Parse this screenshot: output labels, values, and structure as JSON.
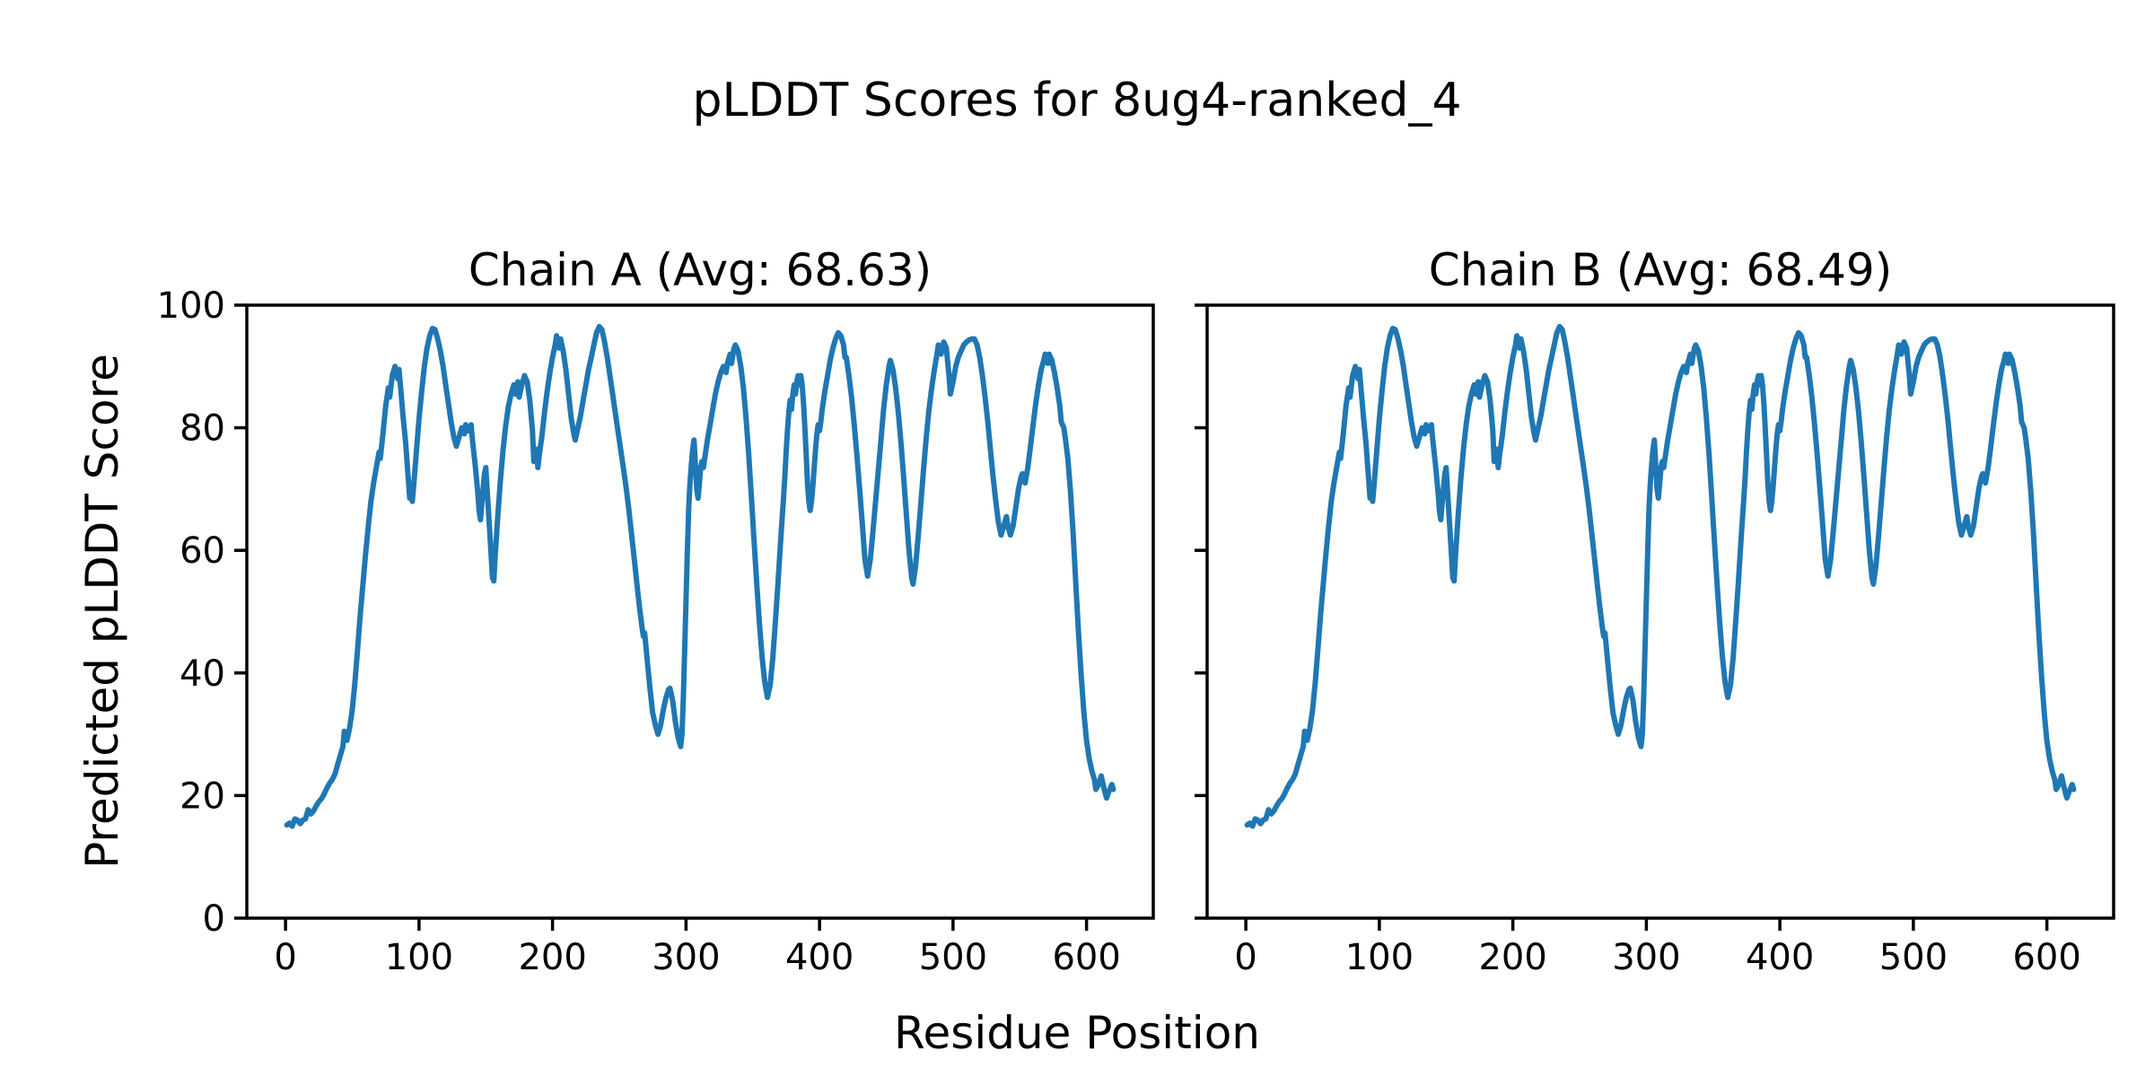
{
  "figure": {
    "title": "pLDDT Scores for 8ug4-ranked_4"
  },
  "chart_data": {
    "type": "line",
    "title": "pLDDT Scores for 8ug4-ranked_4",
    "xlabel": "Residue Position",
    "ylabel": "Predicted pLDDT Score",
    "xlim": [
      -29,
      650
    ],
    "ylim": [
      0,
      100
    ],
    "xticks": [
      0,
      100,
      200,
      300,
      400,
      500,
      600
    ],
    "yticks": [
      0,
      20,
      40,
      60,
      80,
      100
    ],
    "grid": false,
    "legend": false,
    "line_color": "#1f77b4",
    "axis_color": "#000000",
    "background": "#ffffff",
    "subplots": [
      {
        "name": "Chain A",
        "title": "Chain A (Avg: 68.63)",
        "avg": 68.63
      },
      {
        "name": "Chain B",
        "title": "Chain B (Avg: 68.49)",
        "avg": 68.49
      }
    ],
    "points": [
      [
        1,
        15.2
      ],
      [
        3,
        15.5
      ],
      [
        5,
        15.0
      ],
      [
        7,
        16.2
      ],
      [
        9,
        16.0
      ],
      [
        11,
        15.4
      ],
      [
        13,
        16.0
      ],
      [
        15,
        16.2
      ],
      [
        17,
        17.7
      ],
      [
        19,
        17.0
      ],
      [
        21,
        17.5
      ],
      [
        23,
        18.3
      ],
      [
        25,
        19.0
      ],
      [
        27,
        19.5
      ],
      [
        29,
        20.3
      ],
      [
        31,
        21.2
      ],
      [
        33,
        22.0
      ],
      [
        35,
        22.6
      ],
      [
        37,
        23.5
      ],
      [
        39,
        25.0
      ],
      [
        41,
        26.5
      ],
      [
        43,
        28.0
      ],
      [
        44,
        30.5
      ],
      [
        46,
        29.0
      ],
      [
        48,
        31.0
      ],
      [
        50,
        34.0
      ],
      [
        52,
        38.5
      ],
      [
        54,
        44.0
      ],
      [
        56,
        49.5
      ],
      [
        58,
        54.5
      ],
      [
        60,
        59.5
      ],
      [
        62,
        64.0
      ],
      [
        64,
        68.0
      ],
      [
        66,
        71.0
      ],
      [
        68,
        73.5
      ],
      [
        70,
        76.0
      ],
      [
        71,
        75.0
      ],
      [
        73,
        79.0
      ],
      [
        75,
        83.5
      ],
      [
        77,
        86.5
      ],
      [
        78,
        85.0
      ],
      [
        80,
        88.5
      ],
      [
        82,
        90.0
      ],
      [
        84,
        88.0
      ],
      [
        85,
        89.5
      ],
      [
        86,
        87.0
      ],
      [
        88,
        82.0
      ],
      [
        90,
        77.5
      ],
      [
        92,
        71.5
      ],
      [
        93,
        68.5
      ],
      [
        94,
        69.5
      ],
      [
        95,
        68.0
      ],
      [
        96,
        70.5
      ],
      [
        98,
        76.0
      ],
      [
        100,
        81.5
      ],
      [
        102,
        86.0
      ],
      [
        104,
        90.0
      ],
      [
        106,
        93.0
      ],
      [
        108,
        95.0
      ],
      [
        110,
        96.2
      ],
      [
        112,
        96.0
      ],
      [
        114,
        94.5
      ],
      [
        116,
        92.5
      ],
      [
        118,
        90.0
      ],
      [
        120,
        87.0
      ],
      [
        122,
        84.0
      ],
      [
        124,
        81.0
      ],
      [
        126,
        78.5
      ],
      [
        128,
        77.0
      ],
      [
        130,
        78.5
      ],
      [
        132,
        80.0
      ],
      [
        134,
        79.0
      ],
      [
        135,
        80.5
      ],
      [
        137,
        79.5
      ],
      [
        139,
        80.5
      ],
      [
        140,
        78.0
      ],
      [
        142,
        74.0
      ],
      [
        144,
        69.5
      ],
      [
        145,
        66.5
      ],
      [
        146,
        65.0
      ],
      [
        147,
        67.5
      ],
      [
        149,
        72.5
      ],
      [
        150,
        73.5
      ],
      [
        151,
        70.0
      ],
      [
        153,
        63.0
      ],
      [
        155,
        55.5
      ],
      [
        156,
        55.0
      ],
      [
        157,
        59.0
      ],
      [
        159,
        65.5
      ],
      [
        161,
        71.5
      ],
      [
        163,
        76.5
      ],
      [
        165,
        80.5
      ],
      [
        167,
        83.5
      ],
      [
        169,
        85.5
      ],
      [
        171,
        87.0
      ],
      [
        172,
        85.5
      ],
      [
        174,
        87.5
      ],
      [
        175,
        85.0
      ],
      [
        177,
        87.0
      ],
      [
        179,
        88.5
      ],
      [
        181,
        87.5
      ],
      [
        183,
        84.5
      ],
      [
        185,
        79.5
      ],
      [
        186,
        74.5
      ],
      [
        188,
        76.5
      ],
      [
        189,
        73.5
      ],
      [
        190,
        75.5
      ],
      [
        192,
        78.5
      ],
      [
        194,
        82.5
      ],
      [
        196,
        86.0
      ],
      [
        198,
        89.0
      ],
      [
        200,
        91.5
      ],
      [
        202,
        93.5
      ],
      [
        203,
        95.0
      ],
      [
        205,
        93.0
      ],
      [
        206,
        94.5
      ],
      [
        208,
        92.5
      ],
      [
        210,
        89.5
      ],
      [
        212,
        85.5
      ],
      [
        214,
        81.5
      ],
      [
        216,
        79.0
      ],
      [
        217,
        78.0
      ],
      [
        219,
        80.0
      ],
      [
        221,
        82.0
      ],
      [
        223,
        84.5
      ],
      [
        225,
        87.0
      ],
      [
        227,
        89.5
      ],
      [
        229,
        91.5
      ],
      [
        231,
        93.5
      ],
      [
        233,
        95.5
      ],
      [
        235,
        96.5
      ],
      [
        237,
        96.0
      ],
      [
        239,
        94.0
      ],
      [
        241,
        91.5
      ],
      [
        243,
        88.5
      ],
      [
        245,
        85.5
      ],
      [
        247,
        82.5
      ],
      [
        249,
        79.5
      ],
      [
        251,
        76.5
      ],
      [
        253,
        73.5
      ],
      [
        255,
        70.5
      ],
      [
        257,
        67.0
      ],
      [
        259,
        63.0
      ],
      [
        261,
        59.0
      ],
      [
        263,
        55.0
      ],
      [
        265,
        51.0
      ],
      [
        267,
        47.5
      ],
      [
        268,
        46.0
      ],
      [
        269,
        46.5
      ],
      [
        271,
        42.0
      ],
      [
        273,
        37.5
      ],
      [
        275,
        33.5
      ],
      [
        277,
        31.5
      ],
      [
        279,
        30.0
      ],
      [
        281,
        31.5
      ],
      [
        283,
        34.0
      ],
      [
        285,
        36.0
      ],
      [
        287,
        37.3
      ],
      [
        288,
        37.5
      ],
      [
        290,
        35.5
      ],
      [
        292,
        32.0
      ],
      [
        294,
        29.5
      ],
      [
        296,
        28.0
      ],
      [
        297,
        30.0
      ],
      [
        298,
        36.0
      ],
      [
        299,
        44.0
      ],
      [
        300,
        52.0
      ],
      [
        301,
        60.0
      ],
      [
        302,
        67.0
      ],
      [
        303,
        71.0
      ],
      [
        304,
        74.0
      ],
      [
        305,
        76.5
      ],
      [
        306,
        78.0
      ],
      [
        307,
        74.0
      ],
      [
        308,
        70.0
      ],
      [
        309,
        68.5
      ],
      [
        310,
        71.0
      ],
      [
        311,
        73.5
      ],
      [
        312,
        74.5
      ],
      [
        313,
        73.5
      ],
      [
        314,
        75.0
      ],
      [
        316,
        78.0
      ],
      [
        318,
        80.5
      ],
      [
        320,
        83.0
      ],
      [
        322,
        85.5
      ],
      [
        324,
        87.5
      ],
      [
        326,
        89.0
      ],
      [
        328,
        90.0
      ],
      [
        330,
        89.0
      ],
      [
        331,
        90.5
      ],
      [
        333,
        92.0
      ],
      [
        334,
        90.5
      ],
      [
        336,
        93.0
      ],
      [
        337,
        93.5
      ],
      [
        339,
        92.5
      ],
      [
        341,
        90.0
      ],
      [
        343,
        86.5
      ],
      [
        345,
        81.5
      ],
      [
        347,
        75.5
      ],
      [
        349,
        68.5
      ],
      [
        351,
        61.5
      ],
      [
        353,
        54.5
      ],
      [
        355,
        48.0
      ],
      [
        357,
        42.5
      ],
      [
        359,
        38.5
      ],
      [
        361,
        36.0
      ],
      [
        363,
        38.0
      ],
      [
        365,
        42.5
      ],
      [
        367,
        48.5
      ],
      [
        369,
        55.0
      ],
      [
        371,
        62.0
      ],
      [
        373,
        68.5
      ],
      [
        374,
        72.0
      ],
      [
        375,
        76.0
      ],
      [
        376,
        79.5
      ],
      [
        377,
        82.5
      ],
      [
        378,
        84.5
      ],
      [
        379,
        83.0
      ],
      [
        380,
        85.5
      ],
      [
        381,
        87.0
      ],
      [
        382,
        85.5
      ],
      [
        383,
        87.5
      ],
      [
        384,
        88.5
      ],
      [
        385,
        87.0
      ],
      [
        386,
        88.5
      ],
      [
        387,
        87.0
      ],
      [
        388,
        84.0
      ],
      [
        389,
        80.0
      ],
      [
        390,
        75.5
      ],
      [
        391,
        71.0
      ],
      [
        392,
        68.0
      ],
      [
        393,
        66.5
      ],
      [
        394,
        68.0
      ],
      [
        395,
        70.5
      ],
      [
        396,
        73.5
      ],
      [
        397,
        76.5
      ],
      [
        398,
        79.0
      ],
      [
        399,
        80.5
      ],
      [
        400,
        79.5
      ],
      [
        401,
        81.0
      ],
      [
        402,
        83.0
      ],
      [
        404,
        86.0
      ],
      [
        406,
        88.5
      ],
      [
        408,
        91.0
      ],
      [
        410,
        93.0
      ],
      [
        412,
        94.5
      ],
      [
        414,
        95.5
      ],
      [
        416,
        95.0
      ],
      [
        418,
        93.5
      ],
      [
        419,
        91.5
      ],
      [
        420,
        91.5
      ],
      [
        422,
        88.5
      ],
      [
        424,
        85.0
      ],
      [
        426,
        80.5
      ],
      [
        428,
        75.5
      ],
      [
        430,
        70.0
      ],
      [
        432,
        64.5
      ],
      [
        434,
        58.5
      ],
      [
        436,
        55.8
      ],
      [
        438,
        58.5
      ],
      [
        440,
        63.0
      ],
      [
        442,
        68.0
      ],
      [
        444,
        73.0
      ],
      [
        446,
        78.0
      ],
      [
        448,
        83.0
      ],
      [
        450,
        87.0
      ],
      [
        452,
        90.0
      ],
      [
        453,
        91.0
      ],
      [
        455,
        89.5
      ],
      [
        457,
        86.5
      ],
      [
        459,
        82.5
      ],
      [
        461,
        77.5
      ],
      [
        463,
        72.0
      ],
      [
        465,
        66.0
      ],
      [
        467,
        60.0
      ],
      [
        469,
        55.5
      ],
      [
        470,
        54.5
      ],
      [
        472,
        57.5
      ],
      [
        474,
        62.5
      ],
      [
        476,
        68.0
      ],
      [
        478,
        73.5
      ],
      [
        480,
        78.5
      ],
      [
        482,
        83.0
      ],
      [
        484,
        86.5
      ],
      [
        486,
        89.5
      ],
      [
        488,
        92.0
      ],
      [
        489,
        93.5
      ],
      [
        491,
        92.0
      ],
      [
        493,
        94.0
      ],
      [
        495,
        93.0
      ],
      [
        497,
        88.5
      ],
      [
        498,
        85.5
      ],
      [
        500,
        87.5
      ],
      [
        502,
        90.0
      ],
      [
        504,
        91.5
      ],
      [
        506,
        92.5
      ],
      [
        508,
        93.5
      ],
      [
        510,
        94.0
      ],
      [
        512,
        94.3
      ],
      [
        514,
        94.5
      ],
      [
        516,
        94.5
      ],
      [
        518,
        93.5
      ],
      [
        520,
        91.5
      ],
      [
        522,
        88.5
      ],
      [
        524,
        85.0
      ],
      [
        526,
        81.0
      ],
      [
        528,
        76.5
      ],
      [
        530,
        72.0
      ],
      [
        532,
        68.0
      ],
      [
        534,
        64.5
      ],
      [
        536,
        62.5
      ],
      [
        538,
        64.0
      ],
      [
        540,
        65.5
      ],
      [
        541,
        64.0
      ],
      [
        543,
        62.5
      ],
      [
        545,
        64.0
      ],
      [
        547,
        67.0
      ],
      [
        549,
        70.0
      ],
      [
        551,
        72.0
      ],
      [
        552,
        72.5
      ],
      [
        554,
        71.0
      ],
      [
        556,
        73.5
      ],
      [
        558,
        77.0
      ],
      [
        560,
        80.5
      ],
      [
        562,
        84.0
      ],
      [
        564,
        87.0
      ],
      [
        566,
        89.5
      ],
      [
        568,
        91.0
      ],
      [
        569,
        92.0
      ],
      [
        571,
        90.5
      ],
      [
        572,
        92.0
      ],
      [
        574,
        91.0
      ],
      [
        576,
        89.0
      ],
      [
        578,
        86.5
      ],
      [
        580,
        83.5
      ],
      [
        581,
        81.0
      ],
      [
        583,
        80.0
      ],
      [
        584,
        78.5
      ],
      [
        586,
        75.0
      ],
      [
        588,
        69.5
      ],
      [
        590,
        62.5
      ],
      [
        592,
        54.5
      ],
      [
        594,
        46.5
      ],
      [
        596,
        39.5
      ],
      [
        598,
        33.5
      ],
      [
        600,
        29.0
      ],
      [
        602,
        26.0
      ],
      [
        604,
        24.0
      ],
      [
        606,
        22.5
      ],
      [
        607,
        21.0
      ],
      [
        609,
        21.8
      ],
      [
        611,
        23.2
      ],
      [
        613,
        21.2
      ],
      [
        615,
        19.6
      ],
      [
        617,
        20.8
      ],
      [
        619,
        21.8
      ],
      [
        620,
        21.0
      ]
    ]
  }
}
